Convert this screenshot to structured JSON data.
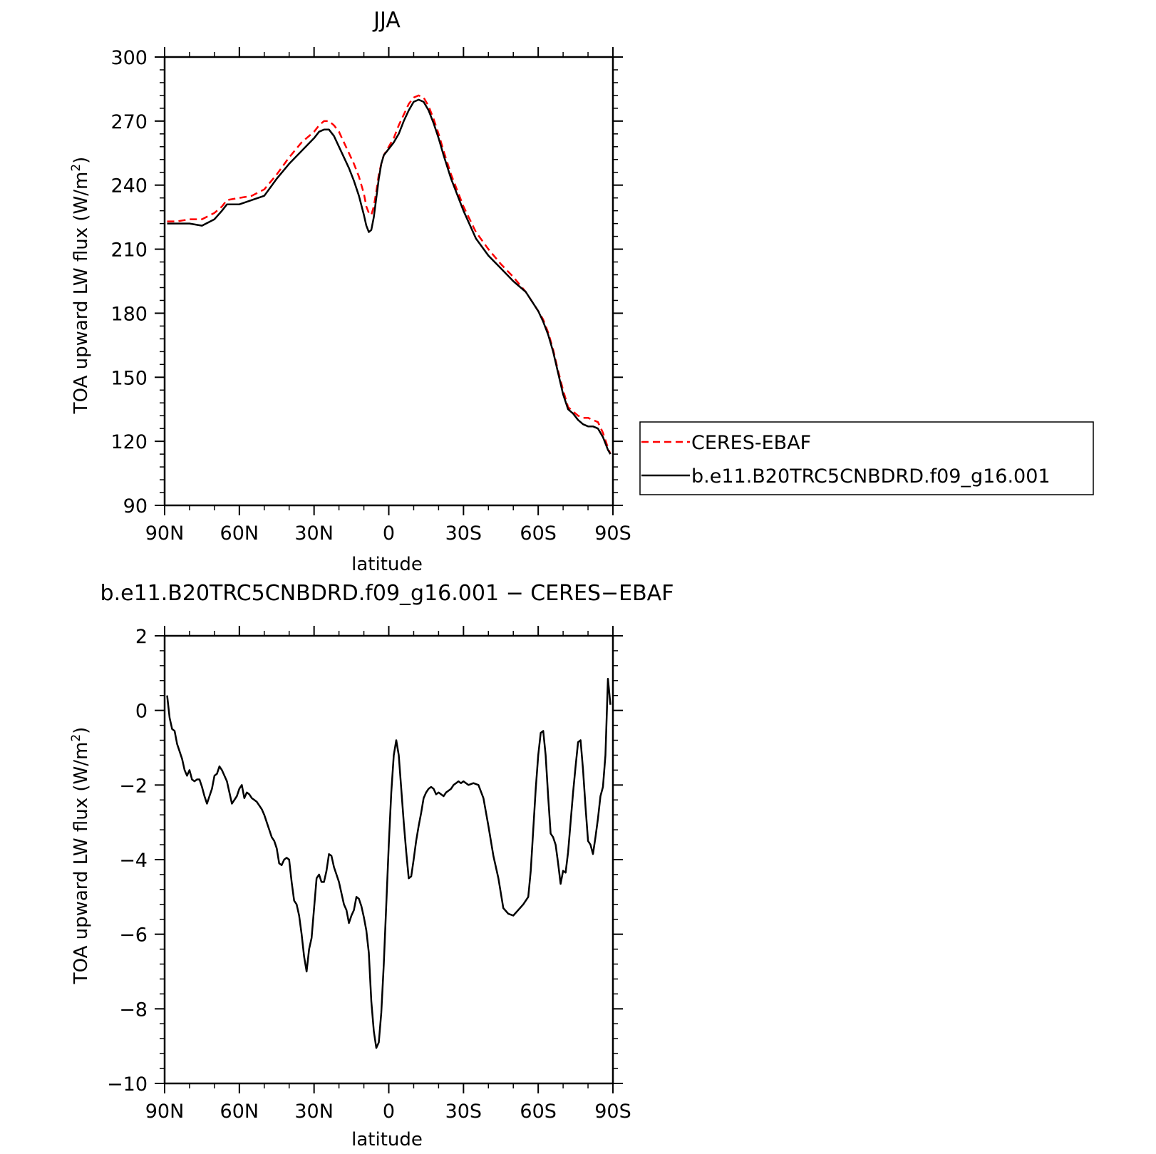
{
  "chart_data": [
    {
      "type": "line",
      "title": "JJA",
      "xlabel": "latitude",
      "ylabel": "TOA upward LW flux (W/m",
      "ylabel_superscript": "2",
      "ylabel_suffix": ")",
      "xlim": [
        90,
        -90
      ],
      "ylim": [
        90,
        300
      ],
      "xticks": [
        90,
        60,
        30,
        0,
        -30,
        -60,
        -90
      ],
      "xtick_labels": [
        "90N",
        "60N",
        "30N",
        "0",
        "30S",
        "60S",
        "90S"
      ],
      "yticks": [
        90,
        120,
        150,
        180,
        210,
        240,
        270,
        300
      ],
      "ytick_labels": [
        "90",
        "120",
        "150",
        "180",
        "210",
        "240",
        "270",
        "300"
      ],
      "legend_position": "right",
      "series": [
        {
          "name": "CERES-EBAF",
          "color": "#ff0000",
          "dash": "dashed",
          "x": [
            89,
            85,
            80,
            75,
            70,
            67,
            65,
            60,
            55,
            50,
            45,
            40,
            35,
            30,
            28,
            26,
            24,
            22,
            20,
            18,
            16,
            14,
            12,
            10,
            9,
            8,
            7,
            6,
            5,
            4,
            3,
            2,
            0,
            -2,
            -4,
            -6,
            -8,
            -10,
            -12,
            -14,
            -16,
            -18,
            -20,
            -22,
            -25,
            -30,
            -35,
            -40,
            -45,
            -50,
            -55,
            -60,
            -62,
            -64,
            -66,
            -68,
            -70,
            -72,
            -74,
            -76,
            -78,
            -80,
            -82,
            -84,
            -86,
            -88,
            -89
          ],
          "y": [
            223,
            223,
            224,
            224,
            227,
            230,
            233,
            234,
            235,
            238,
            245,
            253,
            260,
            265,
            268,
            270,
            270,
            268,
            265,
            260,
            255,
            250,
            244,
            236,
            230,
            227,
            226,
            230,
            237,
            245,
            250,
            254,
            258,
            262,
            268,
            273,
            278,
            281,
            282,
            281,
            277,
            271,
            264,
            256,
            245,
            230,
            218,
            210,
            203,
            197,
            190,
            181,
            177,
            171,
            163,
            153,
            144,
            136,
            134,
            132,
            131,
            131,
            130,
            129,
            124,
            117,
            114
          ]
        },
        {
          "name": "b.e11.B20TRC5CNBDRD.f09_g16.001",
          "color": "#000000",
          "dash": "solid",
          "x": [
            89,
            85,
            80,
            75,
            70,
            67,
            65,
            60,
            55,
            50,
            45,
            40,
            35,
            30,
            28,
            26,
            24,
            22,
            20,
            18,
            16,
            14,
            12,
            10,
            9,
            8,
            7,
            6,
            5,
            4,
            3,
            2,
            0,
            -2,
            -4,
            -6,
            -8,
            -10,
            -12,
            -14,
            -16,
            -18,
            -20,
            -22,
            -25,
            -30,
            -35,
            -40,
            -45,
            -50,
            -55,
            -60,
            -62,
            -64,
            -66,
            -68,
            -70,
            -72,
            -74,
            -76,
            -78,
            -80,
            -82,
            -84,
            -86,
            -88,
            -89
          ],
          "y": [
            222,
            222,
            222,
            221,
            224,
            228,
            231,
            231,
            233,
            235,
            243,
            250,
            256,
            262,
            265,
            266,
            266,
            263,
            258,
            253,
            248,
            242,
            235,
            226,
            221,
            218,
            219,
            225,
            234,
            243,
            250,
            254,
            257,
            260,
            264,
            270,
            275,
            279,
            280,
            279,
            275,
            269,
            262,
            254,
            243,
            228,
            215,
            207,
            201,
            195,
            190,
            181,
            176,
            170,
            162,
            152,
            142,
            135,
            133,
            130,
            128,
            127,
            127,
            126,
            122,
            116,
            114
          ]
        }
      ]
    },
    {
      "type": "line",
      "title": "b.e11.B20TRC5CNBDRD.f09_g16.001 − CERES−EBAF",
      "xlabel": "latitude",
      "ylabel": "TOA upward LW flux (W/m",
      "ylabel_superscript": "2",
      "ylabel_suffix": ")",
      "xlim": [
        90,
        -90
      ],
      "ylim": [
        -10,
        2
      ],
      "xticks": [
        90,
        60,
        30,
        0,
        -30,
        -60,
        -90
      ],
      "xtick_labels": [
        "90N",
        "60N",
        "30N",
        "0",
        "30S",
        "60S",
        "90S"
      ],
      "yticks": [
        2,
        0,
        -2,
        -4,
        -6,
        -8,
        -10
      ],
      "ytick_labels": [
        "2",
        "0",
        "−2",
        "−4",
        "−6",
        "−8",
        "−10"
      ],
      "series": [
        {
          "color": "#000000",
          "dash": "solid",
          "x": [
            89,
            88,
            87,
            86,
            85,
            84,
            83,
            82,
            81,
            80,
            79,
            78,
            77,
            76,
            75,
            74,
            73,
            72,
            71,
            70,
            69,
            68,
            67,
            66,
            65,
            64,
            63,
            62,
            61,
            60,
            59,
            58,
            57,
            56,
            55,
            54,
            53,
            52,
            51,
            50,
            49,
            48,
            47,
            46,
            45,
            44,
            43,
            42,
            41,
            40,
            39,
            38,
            37,
            36,
            35,
            34,
            33,
            32,
            31,
            30,
            29,
            28,
            27,
            26,
            25,
            24,
            23,
            22,
            21,
            20,
            19,
            18,
            17,
            16,
            15,
            14,
            13,
            12,
            11,
            10,
            9,
            8,
            7,
            6,
            5,
            4,
            3,
            2,
            1,
            0,
            -1,
            -2,
            -3,
            -4,
            -5,
            -6,
            -7,
            -8,
            -9,
            -10,
            -11,
            -12,
            -13,
            -14,
            -15,
            -16,
            -17,
            -18,
            -19,
            -20,
            -21,
            -22,
            -23,
            -24,
            -25,
            -26,
            -27,
            -28,
            -29,
            -30,
            -32,
            -34,
            -36,
            -38,
            -40,
            -42,
            -44,
            -46,
            -48,
            -50,
            -52,
            -54,
            -56,
            -57,
            -58,
            -59,
            -60,
            -61,
            -62,
            -63,
            -64,
            -65,
            -66,
            -67,
            -68,
            -69,
            -70,
            -71,
            -72,
            -73,
            -74,
            -75,
            -76,
            -77,
            -78,
            -79,
            -80,
            -81,
            -82,
            -83,
            -84,
            -85,
            -86,
            -87,
            -88,
            -89
          ],
          "y": [
            0.4,
            -0.2,
            -0.5,
            -0.55,
            -0.9,
            -1.1,
            -1.3,
            -1.6,
            -1.75,
            -1.6,
            -1.85,
            -1.9,
            -1.85,
            -1.85,
            -2.05,
            -2.3,
            -2.5,
            -2.3,
            -2.1,
            -1.75,
            -1.7,
            -1.5,
            -1.6,
            -1.75,
            -1.9,
            -2.2,
            -2.5,
            -2.4,
            -2.3,
            -2.1,
            -2.0,
            -2.35,
            -2.2,
            -2.25,
            -2.35,
            -2.4,
            -2.45,
            -2.55,
            -2.65,
            -2.8,
            -3.0,
            -3.2,
            -3.4,
            -3.5,
            -3.7,
            -4.1,
            -4.15,
            -4.0,
            -3.95,
            -4.0,
            -4.6,
            -5.1,
            -5.2,
            -5.5,
            -6.0,
            -6.6,
            -7.0,
            -6.4,
            -6.1,
            -5.3,
            -4.5,
            -4.4,
            -4.6,
            -4.6,
            -4.3,
            -3.85,
            -3.9,
            -4.2,
            -4.4,
            -4.6,
            -4.9,
            -5.2,
            -5.35,
            -5.7,
            -5.5,
            -5.35,
            -5.0,
            -5.05,
            -5.25,
            -5.55,
            -5.9,
            -6.5,
            -7.8,
            -8.6,
            -9.05,
            -8.9,
            -8.1,
            -6.8,
            -5.2,
            -3.6,
            -2.2,
            -1.2,
            -0.8,
            -1.2,
            -2.1,
            -3.0,
            -3.8,
            -4.5,
            -4.45,
            -4.0,
            -3.5,
            -3.1,
            -2.75,
            -2.35,
            -2.2,
            -2.1,
            -2.05,
            -2.1,
            -2.25,
            -2.2,
            -2.25,
            -2.3,
            -2.2,
            -2.15,
            -2.1,
            -2.0,
            -1.95,
            -1.9,
            -1.95,
            -1.9,
            -2.0,
            -1.95,
            -2.0,
            -2.35,
            -3.1,
            -3.9,
            -4.5,
            -5.3,
            -5.45,
            -5.5,
            -5.35,
            -5.2,
            -5.0,
            -4.3,
            -3.2,
            -2.1,
            -1.2,
            -0.6,
            -0.55,
            -1.2,
            -2.3,
            -3.3,
            -3.4,
            -3.6,
            -4.1,
            -4.65,
            -4.3,
            -4.35,
            -3.8,
            -3.0,
            -2.2,
            -1.5,
            -0.85,
            -0.8,
            -1.6,
            -2.6,
            -3.5,
            -3.6,
            -3.85,
            -3.4,
            -2.9,
            -2.3,
            -2.05,
            -1.2,
            0.85,
            0.15
          ]
        }
      ]
    }
  ]
}
